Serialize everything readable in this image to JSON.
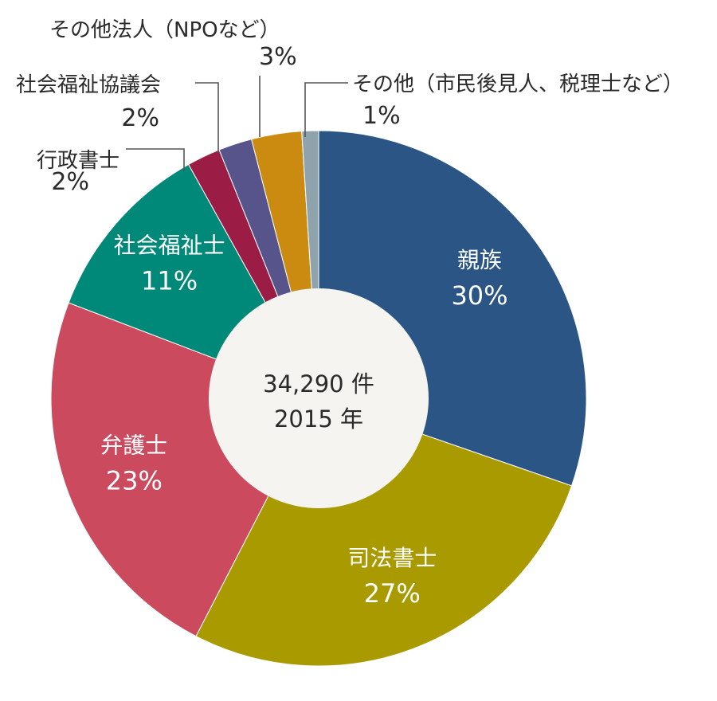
{
  "chart_data": {
    "type": "pie",
    "variant": "donut",
    "center_label": [
      "34,290 件",
      "2015 年"
    ],
    "slices": [
      {
        "label": "親族",
        "value": 30,
        "display": "30%",
        "color": "#2a5585",
        "label_placement": "inside"
      },
      {
        "label": "司法書士",
        "value": 27,
        "display": "27%",
        "color": "#a99a00",
        "label_placement": "inside"
      },
      {
        "label": "弁護士",
        "value": 23,
        "display": "23%",
        "color": "#cb4a5e",
        "label_placement": "inside"
      },
      {
        "label": "社会福祉士",
        "value": 11,
        "display": "11%",
        "color": "#008878",
        "label_placement": "inside"
      },
      {
        "label": "行政書士",
        "value": 2,
        "display": "2%",
        "color": "#9b1c45",
        "label_placement": "outside"
      },
      {
        "label": "社会福祉協議会",
        "value": 2,
        "display": "2%",
        "color": "#56548a",
        "label_placement": "outside"
      },
      {
        "label": "その他法人（NPOなど）",
        "value": 3,
        "display": "3%",
        "color": "#cb8a10",
        "label_placement": "outside"
      },
      {
        "label": "その他（市民後見人、税理士など）",
        "value": 1,
        "display": "1%",
        "color": "#8fa3ac",
        "label_placement": "outside"
      }
    ],
    "direction": "clockwise from top"
  }
}
